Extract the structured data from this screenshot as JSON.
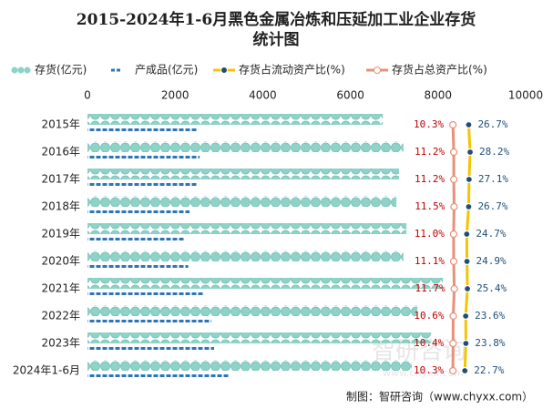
{
  "chart_data": {
    "type": "bar",
    "title": "2015-2024年1-6月黑色金属冶炼和压延加工业企业存货统计图",
    "categories": [
      "2015年",
      "2016年",
      "2017年",
      "2018年",
      "2019年",
      "2020年",
      "2021年",
      "2022年",
      "2023年",
      "2024年1-6月"
    ],
    "xlim": [
      0,
      10000
    ],
    "xticks": [
      0,
      2000,
      4000,
      6000,
      8000,
      10000
    ],
    "x2lim": [
      -370,
      86
    ],
    "series": [
      {
        "name": "存货(亿元)",
        "type": "bar",
        "color": "#8fd3c8",
        "values": [
          6740,
          7210,
          7110,
          7050,
          7280,
          7210,
          8110,
          7530,
          7840,
          7400
        ]
      },
      {
        "name": "产成品(亿元)",
        "type": "bar",
        "color": "#2e75b6",
        "values": [
          2500,
          2560,
          2500,
          2330,
          2220,
          2300,
          2660,
          2830,
          2890,
          3240
        ]
      },
      {
        "name": "存货占流动资产比(%)",
        "type": "line",
        "axis": "x2",
        "color": "#f5c400",
        "values": [
          26.7,
          28.2,
          27.1,
          26.7,
          24.7,
          24.9,
          25.4,
          23.6,
          23.8,
          22.7
        ],
        "value_labels": [
          "26.7%",
          "28.2%",
          "27.1%",
          "26.7%",
          "24.7%",
          "24.9%",
          "25.4%",
          "23.6%",
          "23.8%",
          "22.7%"
        ]
      },
      {
        "name": "存货占总资产比(%)",
        "type": "line",
        "axis": "x2",
        "color": "#e8907a",
        "values": [
          10.3,
          11.2,
          11.2,
          11.5,
          11.0,
          11.1,
          11.7,
          10.6,
          10.4,
          10.3
        ],
        "value_labels": [
          "10.3%",
          "11.2%",
          "11.2%",
          "11.5%",
          "11.0%",
          "11.1%",
          "11.7%",
          "10.6%",
          "10.4%",
          "10.3%"
        ]
      }
    ],
    "source": "制图：智研咨询（www.chyxx.com）",
    "watermark": [
      "智研咨询",
      "www.chyxx.com"
    ]
  }
}
